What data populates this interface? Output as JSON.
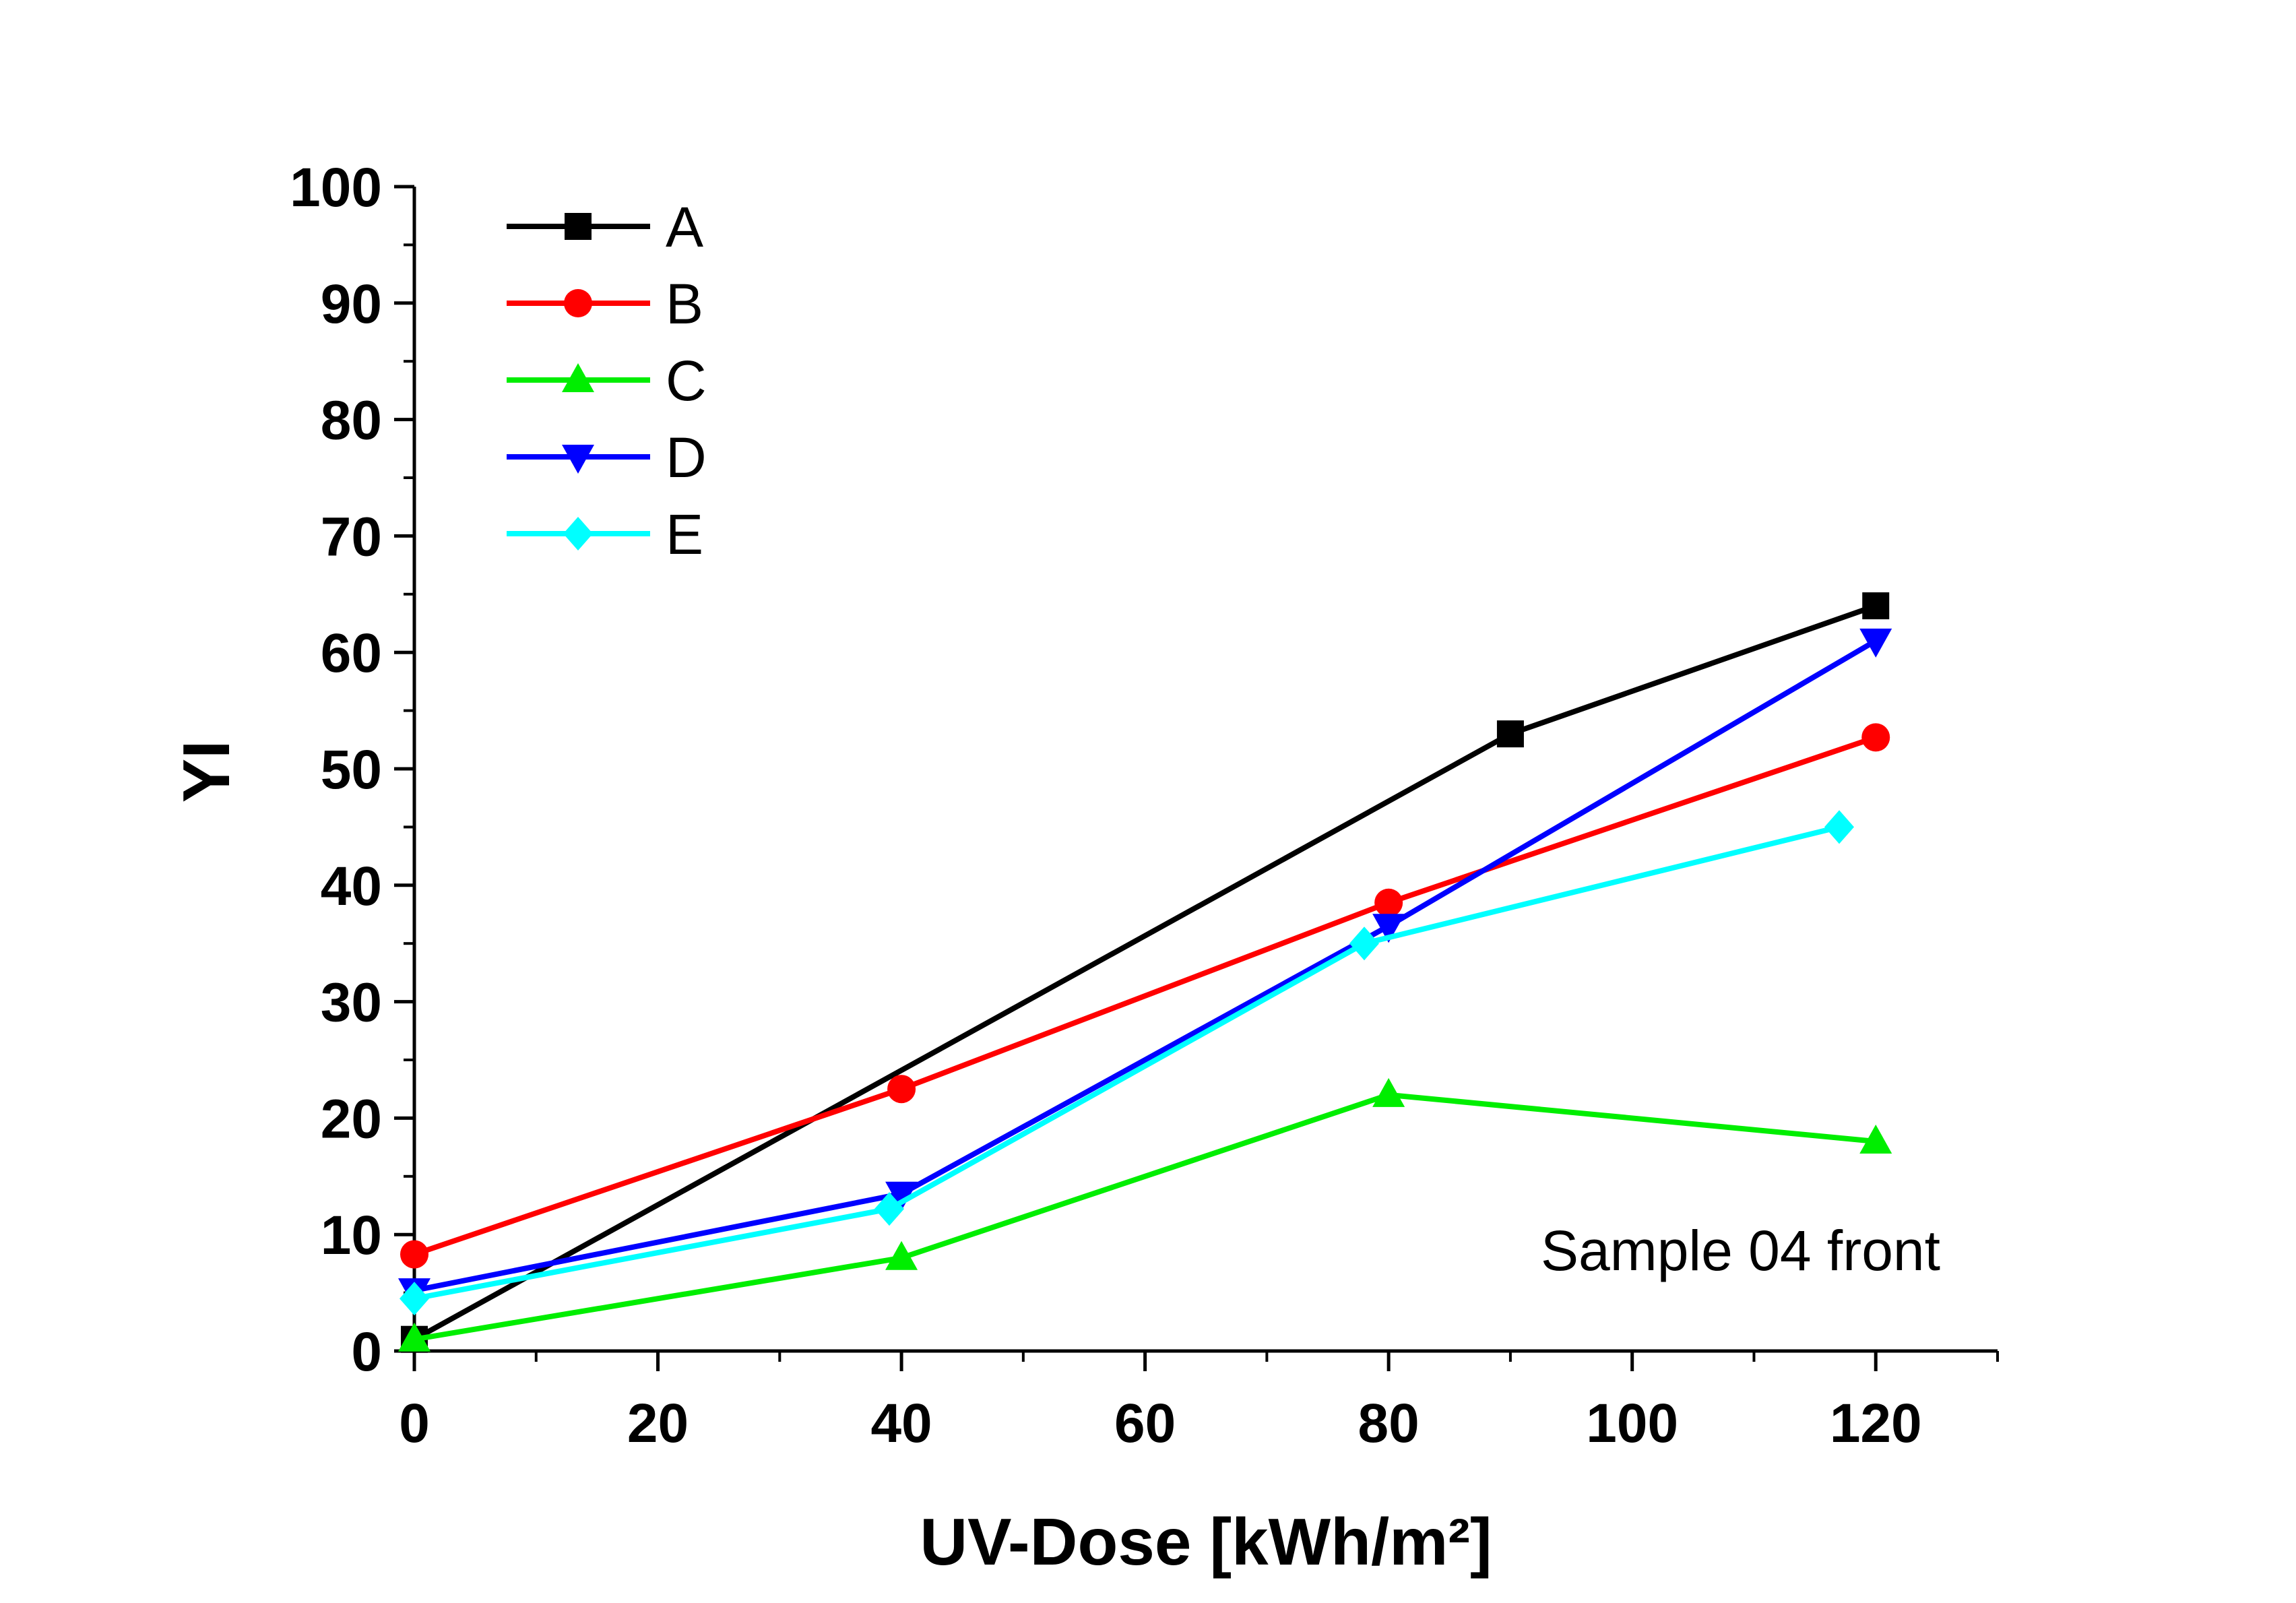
{
  "chart_data": {
    "type": "line",
    "title": "",
    "xlabel": "UV-Dose [kWh/m²]",
    "ylabel": "YI",
    "xlim": [
      0,
      130
    ],
    "ylim": [
      0,
      100
    ],
    "xticks": [
      0,
      20,
      40,
      60,
      80,
      100,
      120
    ],
    "yticks": [
      0,
      10,
      20,
      30,
      40,
      50,
      60,
      70,
      80,
      90,
      100
    ],
    "xtick_labels": [
      "0",
      "20",
      "40",
      "60",
      "80",
      "100",
      "120"
    ],
    "ytick_labels": [
      "0",
      "10",
      "20",
      "30",
      "40",
      "50",
      "60",
      "70",
      "80",
      "90",
      "100"
    ],
    "grid": false,
    "legend_position": "top-left",
    "annotation": "Sample 04 front",
    "series": [
      {
        "name": "A",
        "color": "#000000",
        "marker": "square",
        "x": [
          0,
          90,
          120
        ],
        "y": [
          1,
          53,
          64
        ]
      },
      {
        "name": "B",
        "color": "#ff0000",
        "marker": "circle",
        "x": [
          0,
          40,
          80,
          120
        ],
        "y": [
          8.3,
          22.5,
          38.5,
          52.7
        ]
      },
      {
        "name": "C",
        "color": "#00ee00",
        "marker": "triangle-up",
        "x": [
          0,
          40,
          80,
          120
        ],
        "y": [
          1,
          8,
          22,
          18
        ]
      },
      {
        "name": "D",
        "color": "#0000ff",
        "marker": "triangle-down",
        "x": [
          0,
          40,
          80,
          120
        ],
        "y": [
          5.2,
          13.5,
          36.5,
          61
        ]
      },
      {
        "name": "E",
        "color": "#00ffff",
        "marker": "diamond",
        "x": [
          0,
          39,
          78,
          117
        ],
        "y": [
          4.5,
          12.2,
          35,
          45
        ]
      }
    ]
  }
}
